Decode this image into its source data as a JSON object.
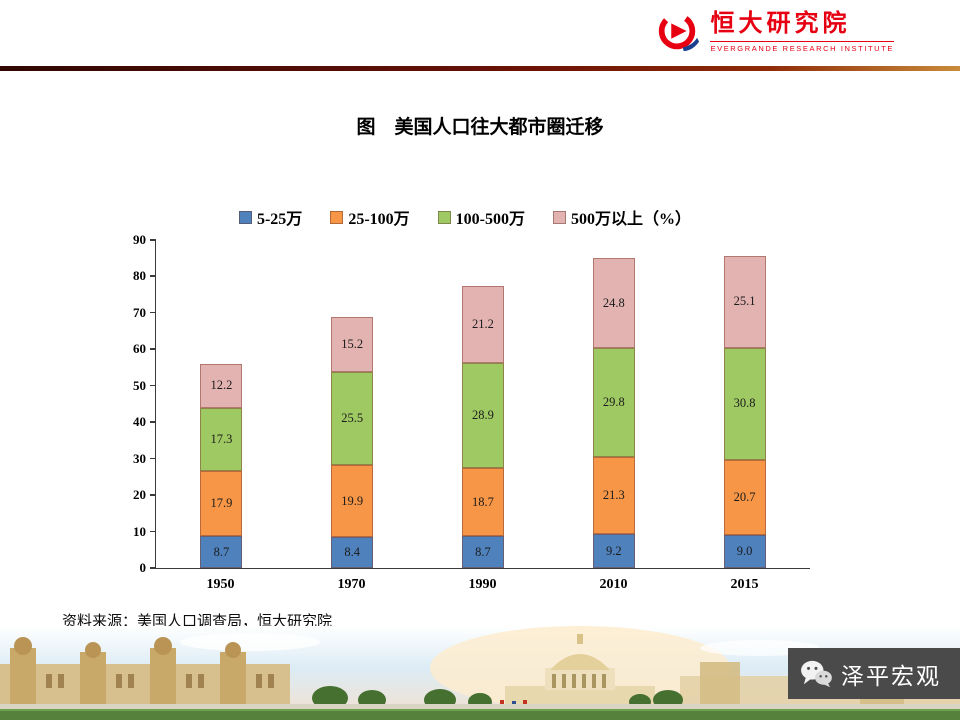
{
  "header": {
    "logo_cn": "恒大研究院",
    "logo_en": "EVERGRANDE RESEARCH INSTITUTE"
  },
  "title": "图　美国人口往大都市圈迁移",
  "chart_data": {
    "type": "bar",
    "stacked": true,
    "legend_position": "top",
    "categories": [
      "1950",
      "1970",
      "1990",
      "2010",
      "2015"
    ],
    "series": [
      {
        "name": "5-25万",
        "color": "#4f81bd",
        "values": [
          8.7,
          8.4,
          8.7,
          9.2,
          9.0
        ]
      },
      {
        "name": "25-100万",
        "color": "#f79646",
        "values": [
          17.9,
          19.9,
          18.7,
          21.3,
          20.7
        ]
      },
      {
        "name": "100-500万",
        "color": "#9fca63",
        "values": [
          17.3,
          25.5,
          28.9,
          29.8,
          30.8
        ]
      },
      {
        "name": "500万以上（%）",
        "color": "#e2b3b0",
        "values": [
          12.2,
          15.2,
          21.2,
          24.8,
          25.1
        ]
      }
    ],
    "ylim": [
      0,
      90
    ],
    "ytick_interval": 10,
    "grid": false
  },
  "source": "资料来源：美国人口调查局，恒大研究院",
  "footer": {
    "wechat_name": "泽平宏观"
  }
}
